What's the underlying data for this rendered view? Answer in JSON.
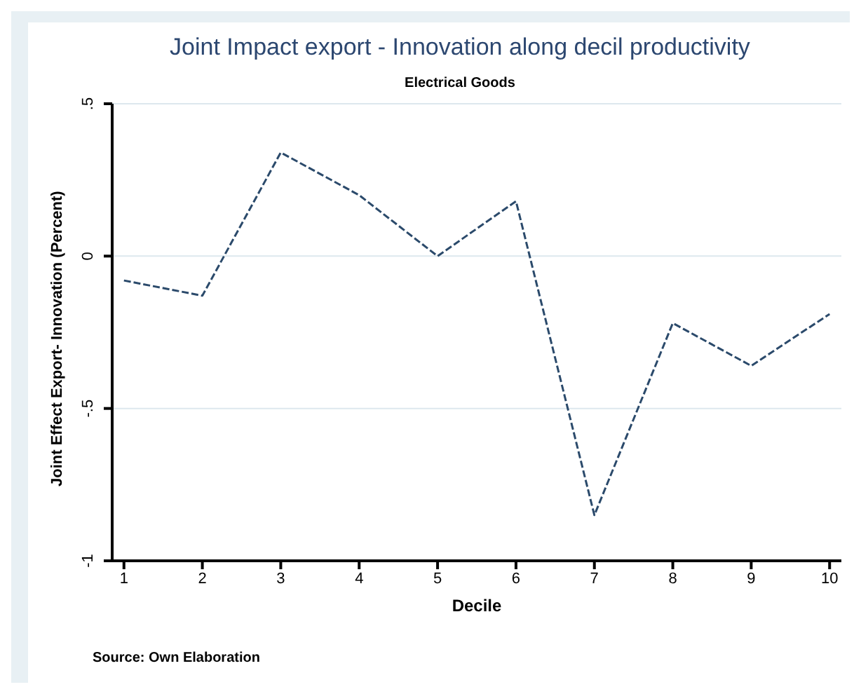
{
  "chart_data": {
    "type": "line",
    "title": "Joint Impact export - Innovation along decil productivity",
    "subtitle": "Electrical Goods",
    "xlabel": "Decile",
    "ylabel": "Joint Effect Export- Innovation (Percent)",
    "annotations": [
      "Source: Own Elaboration"
    ],
    "x": [
      1,
      2,
      3,
      4,
      5,
      6,
      7,
      8,
      9,
      10
    ],
    "series": [
      {
        "color": "#2b4a6b",
        "values": [
          -0.08,
          -0.13,
          0.34,
          0.2,
          0,
          0.18,
          -0.85,
          -0.22,
          -0.36,
          -0.19
        ]
      }
    ],
    "xlim": [
      0.85,
      10.15
    ],
    "xticks": [
      1,
      2,
      3,
      4,
      5,
      6,
      7,
      8,
      9,
      10
    ],
    "ylim": [
      -1,
      0.5
    ],
    "yticks": [
      {
        "value": -1,
        "label": "-1"
      },
      {
        "value": -0.5,
        "label": "-.5"
      },
      {
        "value": 0,
        "label": "0"
      },
      {
        "value": 0.5,
        "label": ".5"
      }
    ],
    "grid": "y",
    "legend": false,
    "marker": "none",
    "line_style": "dashed"
  }
}
